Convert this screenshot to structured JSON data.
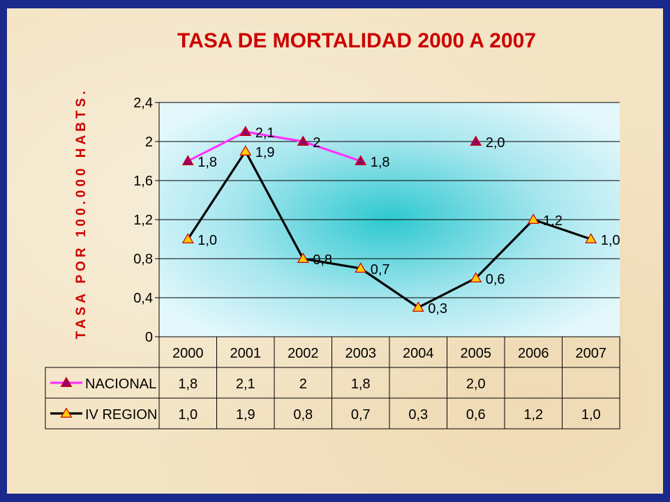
{
  "chart_data": {
    "type": "line",
    "title": "TASA DE MORTALIDAD 2000 A 2007",
    "ylabel": "TASA POR 100.000 HABTS.",
    "xlabel": "",
    "ylim": [
      0,
      2.4
    ],
    "yticks": [
      "0",
      "0,4",
      "0,8",
      "1,2",
      "1,6",
      "2",
      "2,4"
    ],
    "categories": [
      "2000",
      "2001",
      "2002",
      "2003",
      "2004",
      "2005",
      "2006",
      "2007"
    ],
    "grid": true,
    "legend": "data-table-left",
    "series": [
      {
        "name": "NACIONAL",
        "color": "#ff33ff",
        "marker_color": "#990066",
        "values": [
          1.8,
          2.1,
          2.0,
          1.8,
          null,
          2.0,
          null,
          null
        ],
        "labels": [
          "1,8",
          "2,1",
          "2",
          "1,8",
          "",
          "2,0",
          "",
          ""
        ]
      },
      {
        "name": "IV REGION",
        "color": "#000000",
        "marker_color": "#ffcc00",
        "values": [
          1.0,
          1.9,
          0.8,
          0.7,
          0.3,
          0.6,
          1.2,
          1.0
        ],
        "labels": [
          "1,0",
          "1,9",
          "0,8",
          "0,7",
          "0,3",
          "0,6",
          "1,2",
          "1,0"
        ]
      }
    ]
  }
}
